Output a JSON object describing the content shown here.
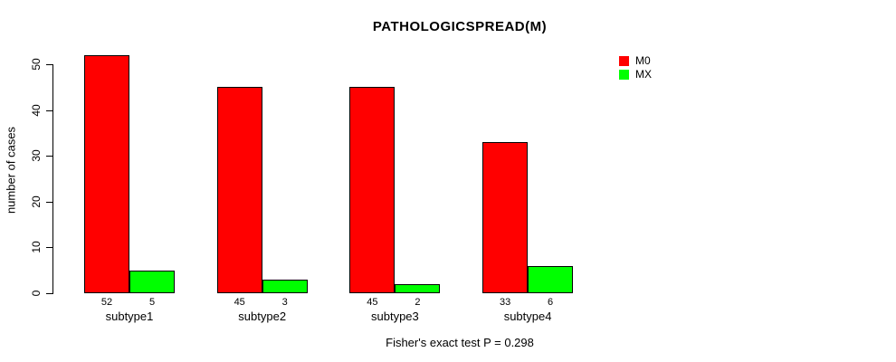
{
  "chart_data": {
    "type": "bar",
    "title": "PATHOLOGICSPREAD(M)",
    "categories": [
      "subtype1",
      "subtype2",
      "subtype3",
      "subtype4"
    ],
    "series": [
      {
        "name": "M0",
        "color": "#FF0000",
        "values": [
          52,
          45,
          45,
          33
        ]
      },
      {
        "name": "MX",
        "color": "#00FF00",
        "values": [
          5,
          3,
          2,
          6
        ]
      }
    ],
    "xlabel": "",
    "ylabel": "number of cases",
    "ylim": [
      0,
      50
    ],
    "yticks": [
      0,
      10,
      20,
      30,
      40,
      50
    ],
    "grid": false,
    "legend_position": "top-right",
    "bar_value_labels": true,
    "annotation": "Fisher's exact test P = 0.298"
  }
}
